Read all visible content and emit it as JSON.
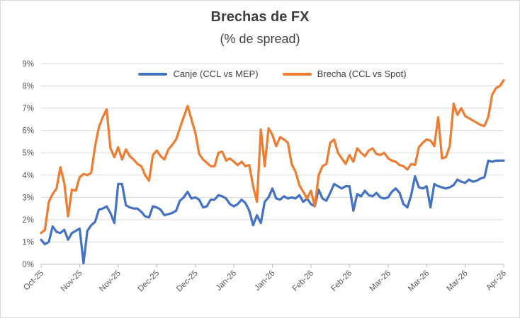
{
  "title": "Brechas de FX",
  "subtitle": "(% de spread)",
  "colors": {
    "canje": "#4472C4",
    "brecha": "#ED7D31",
    "gridline": "#D9D9D9",
    "axis_line": "#BFBFBF",
    "title_text": "#3F3F3F",
    "axis_text": "#595959",
    "legend_text": "#404040"
  },
  "chart_data": {
    "type": "line",
    "title": "Brechas de FX",
    "subtitle": "(% de spread)",
    "xlabel": "",
    "ylabel": "",
    "ylim": [
      0,
      9
    ],
    "ytick_step": 1,
    "ytick_labels": [
      "0%",
      "1%",
      "2%",
      "3%",
      "4%",
      "5%",
      "6%",
      "7%",
      "8%",
      "9%"
    ],
    "grid": "horizontal",
    "legend_position": "top-center",
    "x_tick_labels": [
      "Oct-25",
      "Nov-25",
      "Nov-25",
      "Dec-25",
      "Dec-25",
      "Jan-26",
      "Jan-26",
      "Feb-26",
      "Feb-26",
      "Mar-26",
      "Mar-26",
      "Mar-26",
      "Apr-26"
    ],
    "x_tick_positions": [
      0,
      10,
      20,
      30,
      40,
      50,
      60,
      70,
      80,
      90,
      100,
      110,
      120
    ],
    "n_points": 121,
    "series": [
      {
        "name": "Canje (CCL vs MEP)",
        "color": "#4472C4",
        "values": [
          1.1,
          0.9,
          1.0,
          1.7,
          1.45,
          1.4,
          1.55,
          1.1,
          1.4,
          1.5,
          1.6,
          0.05,
          1.5,
          1.75,
          1.9,
          2.45,
          2.5,
          2.6,
          2.3,
          1.85,
          3.6,
          3.6,
          2.65,
          2.55,
          2.5,
          2.5,
          2.35,
          2.15,
          2.1,
          2.6,
          2.55,
          2.45,
          2.2,
          2.25,
          2.3,
          2.4,
          2.85,
          3.0,
          3.25,
          2.95,
          3.0,
          2.9,
          2.55,
          2.6,
          2.9,
          2.9,
          3.1,
          3.05,
          2.95,
          2.7,
          2.6,
          2.7,
          2.9,
          2.75,
          2.4,
          1.75,
          2.2,
          1.85,
          2.8,
          3.0,
          3.4,
          2.95,
          2.9,
          3.05,
          2.95,
          3.0,
          2.95,
          3.1,
          2.8,
          2.95,
          2.7,
          2.6,
          3.35,
          2.95,
          2.85,
          3.2,
          3.6,
          3.5,
          3.4,
          3.5,
          3.5,
          2.4,
          3.15,
          3.05,
          3.3,
          3.1,
          3.05,
          3.2,
          3.0,
          2.95,
          3.0,
          3.25,
          3.4,
          3.2,
          2.7,
          2.55,
          3.1,
          3.95,
          3.45,
          3.4,
          3.5,
          2.55,
          3.6,
          3.5,
          3.45,
          3.4,
          3.45,
          3.55,
          3.8,
          3.7,
          3.65,
          3.8,
          3.7,
          3.75,
          3.85,
          3.9,
          4.65,
          4.6,
          4.65,
          4.65,
          4.65
        ]
      },
      {
        "name": "Brecha (CCL vs Spot)",
        "color": "#ED7D31",
        "values": [
          1.4,
          1.55,
          2.8,
          3.15,
          3.4,
          4.35,
          3.65,
          2.15,
          3.35,
          3.3,
          3.9,
          4.05,
          4.0,
          4.1,
          5.3,
          6.15,
          6.6,
          6.95,
          5.2,
          4.8,
          5.25,
          4.7,
          5.15,
          4.85,
          4.7,
          4.5,
          4.4,
          4.0,
          3.75,
          4.9,
          5.1,
          4.85,
          4.7,
          5.15,
          5.35,
          5.6,
          6.1,
          6.6,
          7.1,
          6.5,
          5.9,
          4.95,
          4.7,
          4.55,
          4.4,
          4.4,
          5.0,
          5.05,
          4.65,
          4.75,
          4.6,
          4.45,
          4.6,
          4.4,
          4.45,
          3.5,
          2.8,
          6.05,
          4.4,
          6.1,
          5.8,
          5.3,
          5.7,
          5.6,
          5.45,
          4.5,
          4.15,
          3.55,
          3.25,
          2.95,
          3.3,
          2.6,
          4.0,
          4.4,
          4.5,
          5.45,
          5.6,
          5.0,
          4.75,
          4.5,
          4.9,
          4.6,
          5.2,
          5.0,
          4.85,
          5.1,
          5.2,
          4.95,
          4.9,
          5.0,
          4.75,
          4.65,
          4.6,
          4.45,
          4.4,
          4.25,
          4.5,
          4.45,
          5.25,
          5.45,
          5.6,
          5.55,
          5.3,
          6.6,
          4.75,
          4.8,
          5.3,
          7.2,
          6.7,
          7.0,
          6.65,
          6.55,
          6.45,
          6.35,
          6.25,
          6.2,
          6.6,
          7.6,
          7.9,
          8.0,
          8.25
        ]
      }
    ]
  }
}
